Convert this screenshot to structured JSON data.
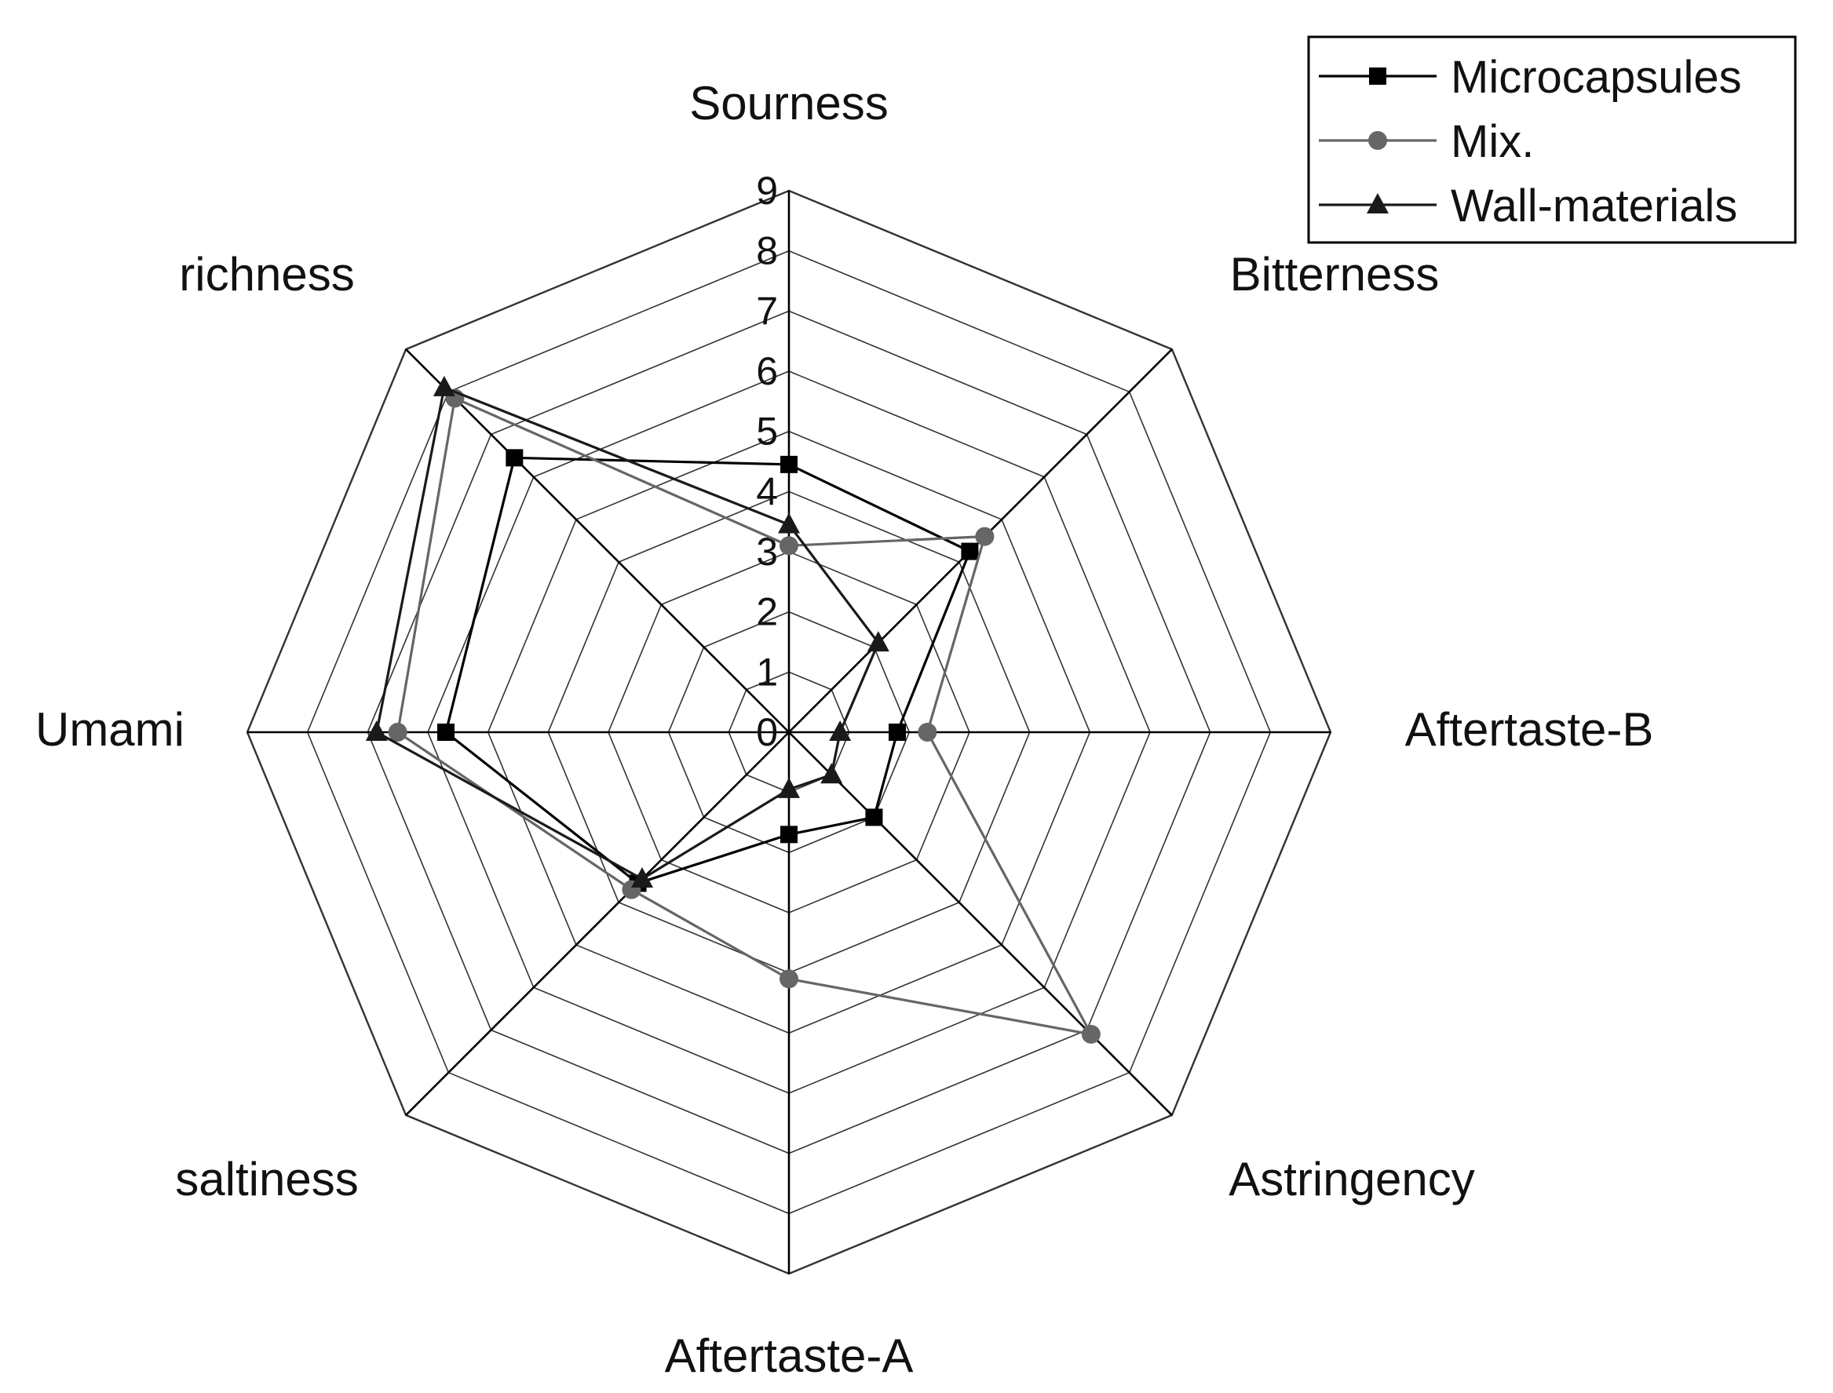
{
  "chart_data": {
    "type": "radar",
    "title": "",
    "categories": [
      "Sourness",
      "Bitterness",
      "Aftertaste-B",
      "Astringency",
      "Aftertaste-A",
      "saltiness",
      "Umami",
      "richness"
    ],
    "rlim": [
      0,
      9
    ],
    "ticks": [
      "0",
      "1",
      "2",
      "3",
      "4",
      "5",
      "6",
      "7",
      "8",
      "9"
    ],
    "grid": true,
    "legend_position": "top-right",
    "series": [
      {
        "name": "Microcapsules",
        "marker": "square",
        "color": "#000000",
        "values": [
          4.45,
          4.25,
          1.8,
          2.0,
          1.7,
          3.55,
          5.7,
          6.45
        ]
      },
      {
        "name": "Mix.",
        "marker": "circle",
        "color": "#666666",
        "values": [
          3.1,
          4.6,
          2.3,
          7.1,
          4.1,
          3.7,
          6.5,
          7.85
        ]
      },
      {
        "name": "Wall-materials",
        "marker": "triangle",
        "color": "#1a1a1a",
        "values": [
          3.45,
          2.1,
          0.85,
          1.0,
          0.95,
          3.45,
          6.85,
          8.1
        ]
      }
    ]
  }
}
